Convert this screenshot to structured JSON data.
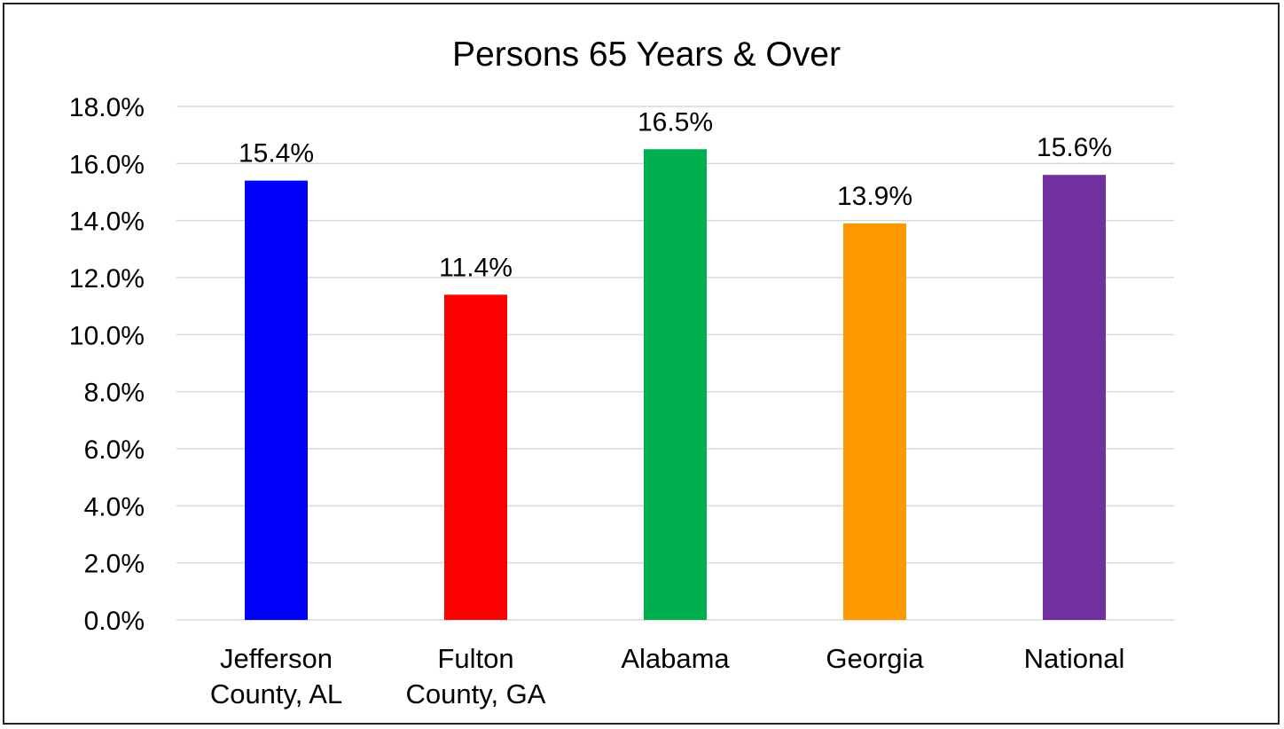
{
  "chart_data": {
    "type": "bar",
    "title": "Persons 65 Years & Over",
    "xlabel": "",
    "ylabel": "",
    "ylim": [
      0,
      18
    ],
    "yticks": [
      0,
      2,
      4,
      6,
      8,
      10,
      12,
      14,
      16,
      18
    ],
    "ytick_labels": [
      "0.0%",
      "2.0%",
      "4.0%",
      "6.0%",
      "8.0%",
      "10.0%",
      "12.0%",
      "14.0%",
      "16.0%",
      "18.0%"
    ],
    "categories": [
      [
        "Jefferson",
        "County, AL"
      ],
      [
        "Fulton",
        "County, GA"
      ],
      [
        "Alabama"
      ],
      [
        "Georgia"
      ],
      [
        "National"
      ]
    ],
    "values": [
      15.4,
      11.4,
      16.5,
      13.9,
      15.6
    ],
    "data_labels": [
      "15.4%",
      "11.4%",
      "16.5%",
      "13.9%",
      "15.6%"
    ],
    "bar_colors": [
      "#0000ff",
      "#ff0000",
      "#00b050",
      "#ff9900",
      "#7030a0"
    ],
    "grid": true,
    "legend": "none"
  }
}
